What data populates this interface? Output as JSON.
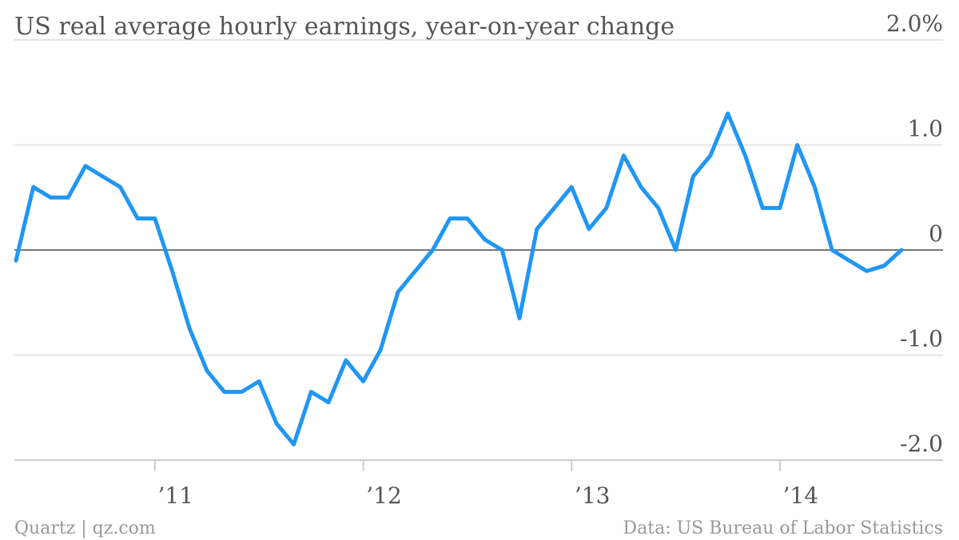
{
  "chart_data": {
    "type": "line",
    "title": "US real average hourly earnings, year-on-year change",
    "xlabel": "",
    "ylabel": "",
    "ylim": [
      -2.0,
      2.0
    ],
    "y_ticks": [
      {
        "value": 2.0,
        "label": "2.0%"
      },
      {
        "value": 1.0,
        "label": "1.0"
      },
      {
        "value": 0.0,
        "label": "0"
      },
      {
        "value": -1.0,
        "label": "-1.0"
      },
      {
        "value": -2.0,
        "label": "-2.0"
      }
    ],
    "x_ticks": [
      {
        "value": "2011-01",
        "label": "’11"
      },
      {
        "value": "2012-01",
        "label": "’12"
      },
      {
        "value": "2013-01",
        "label": "’13"
      },
      {
        "value": "2014-01",
        "label": "’14"
      }
    ],
    "xlim": [
      "2010-05",
      "2014-08"
    ],
    "grid": true,
    "legend": "none",
    "series": [
      {
        "color": "#2196f3",
        "x": [
          "2010-05",
          "2010-06",
          "2010-07",
          "2010-08",
          "2010-09",
          "2010-10",
          "2010-11",
          "2010-12",
          "2011-01",
          "2011-02",
          "2011-03",
          "2011-04",
          "2011-05",
          "2011-06",
          "2011-07",
          "2011-08",
          "2011-09",
          "2011-10",
          "2011-11",
          "2011-12",
          "2012-01",
          "2012-02",
          "2012-03",
          "2012-04",
          "2012-05",
          "2012-06",
          "2012-07",
          "2012-08",
          "2012-09",
          "2012-10",
          "2012-11",
          "2012-12",
          "2013-01",
          "2013-02",
          "2013-03",
          "2013-04",
          "2013-05",
          "2013-06",
          "2013-07",
          "2013-08",
          "2013-09",
          "2013-10",
          "2013-11",
          "2013-12",
          "2014-01",
          "2014-02",
          "2014-03",
          "2014-04",
          "2014-05",
          "2014-06",
          "2014-07",
          "2014-08"
        ],
        "values": [
          -0.1,
          0.6,
          0.5,
          0.5,
          0.8,
          0.7,
          0.6,
          0.3,
          0.3,
          -0.2,
          -0.75,
          -1.15,
          -1.35,
          -1.35,
          -1.25,
          -1.65,
          -1.85,
          -1.35,
          -1.45,
          -1.05,
          -1.25,
          -0.95,
          -0.4,
          -0.2,
          0.0,
          0.3,
          0.3,
          0.1,
          0.0,
          -0.65,
          0.2,
          0.4,
          0.6,
          0.2,
          0.4,
          0.9,
          0.6,
          0.4,
          0.0,
          0.7,
          0.9,
          1.3,
          0.9,
          0.4,
          0.4,
          1.0,
          0.6,
          0.0,
          -0.1,
          -0.2,
          -0.15,
          0.0
        ]
      }
    ]
  },
  "footer": {
    "left": "Quartz | qz.com",
    "right": "Data: US Bureau of Labor Statistics"
  }
}
